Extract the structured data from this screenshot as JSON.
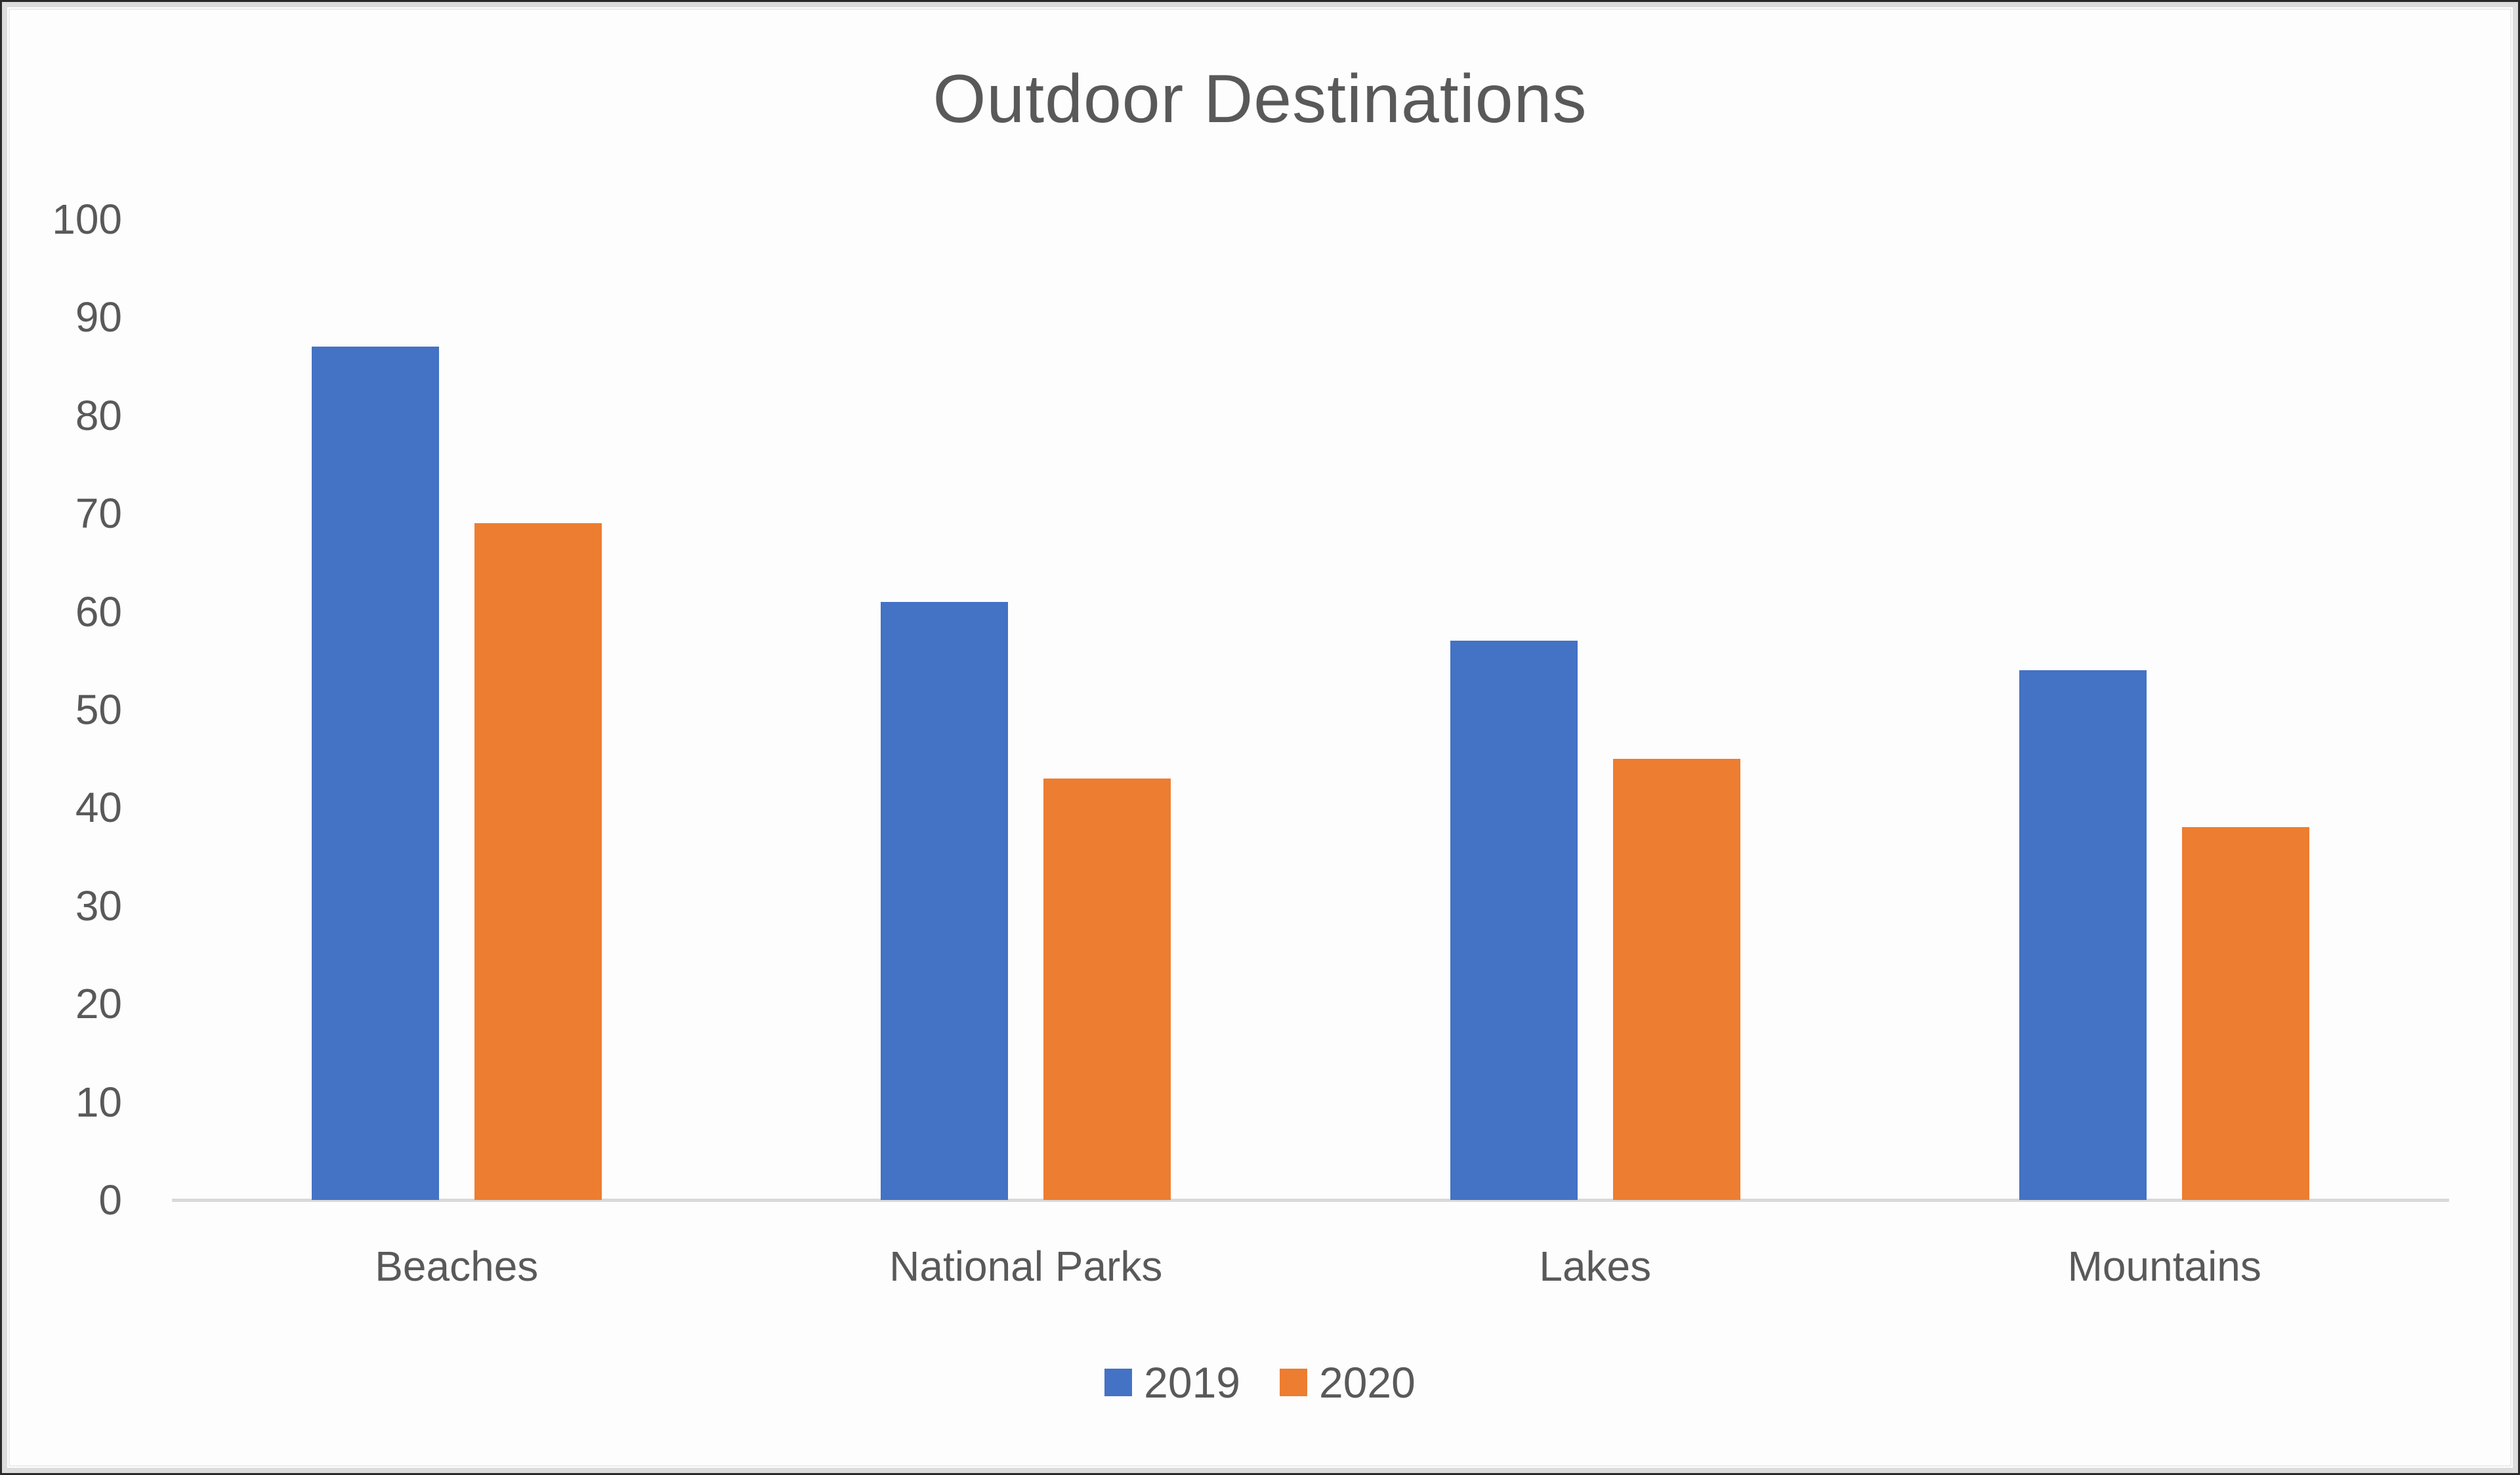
{
  "chart_data": {
    "type": "bar",
    "title": "Outdoor Destinations",
    "xlabel": "",
    "ylabel": "",
    "categories": [
      "Beaches",
      "National Parks",
      "Lakes",
      "Mountains"
    ],
    "series": [
      {
        "name": "2019",
        "color": "#4472C4",
        "values": [
          87,
          61,
          57,
          54
        ]
      },
      {
        "name": "2020",
        "color": "#ED7D31",
        "values": [
          69,
          43,
          45,
          38
        ]
      }
    ],
    "ylim": [
      0,
      100
    ],
    "yticks": [
      "0",
      "10",
      "20",
      "30",
      "40",
      "50",
      "60",
      "70",
      "80",
      "90",
      "100"
    ],
    "grid": false,
    "legend_position": "bottom"
  },
  "colors": {
    "series_2019": "#4472C4",
    "series_2020": "#ED7D31",
    "axis_line": "#D9D9D9",
    "text": "#595959"
  }
}
